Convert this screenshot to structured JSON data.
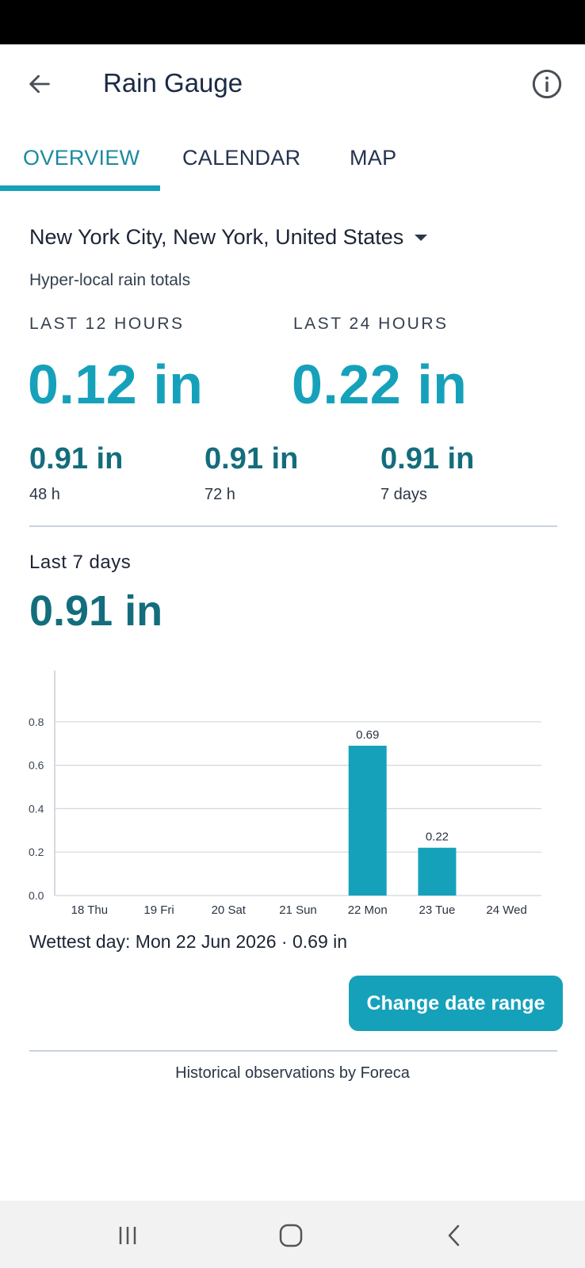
{
  "app_bar": {
    "title": "Rain Gauge",
    "back_icon": "arrow-left-icon",
    "info_icon": "info-icon"
  },
  "tabs": [
    {
      "label": "OVERVIEW",
      "active": true
    },
    {
      "label": "CALENDAR",
      "active": false
    },
    {
      "label": "MAP",
      "active": false
    }
  ],
  "location": {
    "name": "New York City, New York, United States",
    "subtitle": "Hyper-local rain totals"
  },
  "totals": {
    "last12": {
      "label": "LAST 12 HOURS",
      "value": "0.12 in"
    },
    "last24": {
      "label": "LAST 24 HOURS",
      "value": "0.22 in"
    },
    "small": [
      {
        "value": "0.91 in",
        "label": "48 h"
      },
      {
        "value": "0.91 in",
        "label": "72 h"
      },
      {
        "value": "0.91 in",
        "label": "7 days"
      }
    ]
  },
  "week": {
    "label": "Last 7 days",
    "value": "0.91 in"
  },
  "chart_data": {
    "type": "bar",
    "categories": [
      "18 Thu",
      "19 Fri",
      "20 Sat",
      "21 Sun",
      "22 Mon",
      "23 Tue",
      "24 Wed"
    ],
    "values": [
      0,
      0,
      0,
      0,
      0.69,
      0.22,
      0
    ],
    "data_labels": [
      "",
      "",
      "",
      "",
      "0.69",
      "0.22",
      ""
    ],
    "yticks": [
      "0.0",
      "0.2",
      "0.4",
      "0.6",
      "0.8"
    ],
    "ylim": [
      0,
      1.0
    ],
    "grid": true,
    "bar_color": "#16a1bb"
  },
  "wettest": "Wettest day: Mon 22 Jun 2026 · 0.69 in",
  "change_button": "Change date range",
  "footer": "Historical observations by Foreca",
  "colors": {
    "accent": "#16a1bb",
    "accent_dark": "#136d7c"
  }
}
